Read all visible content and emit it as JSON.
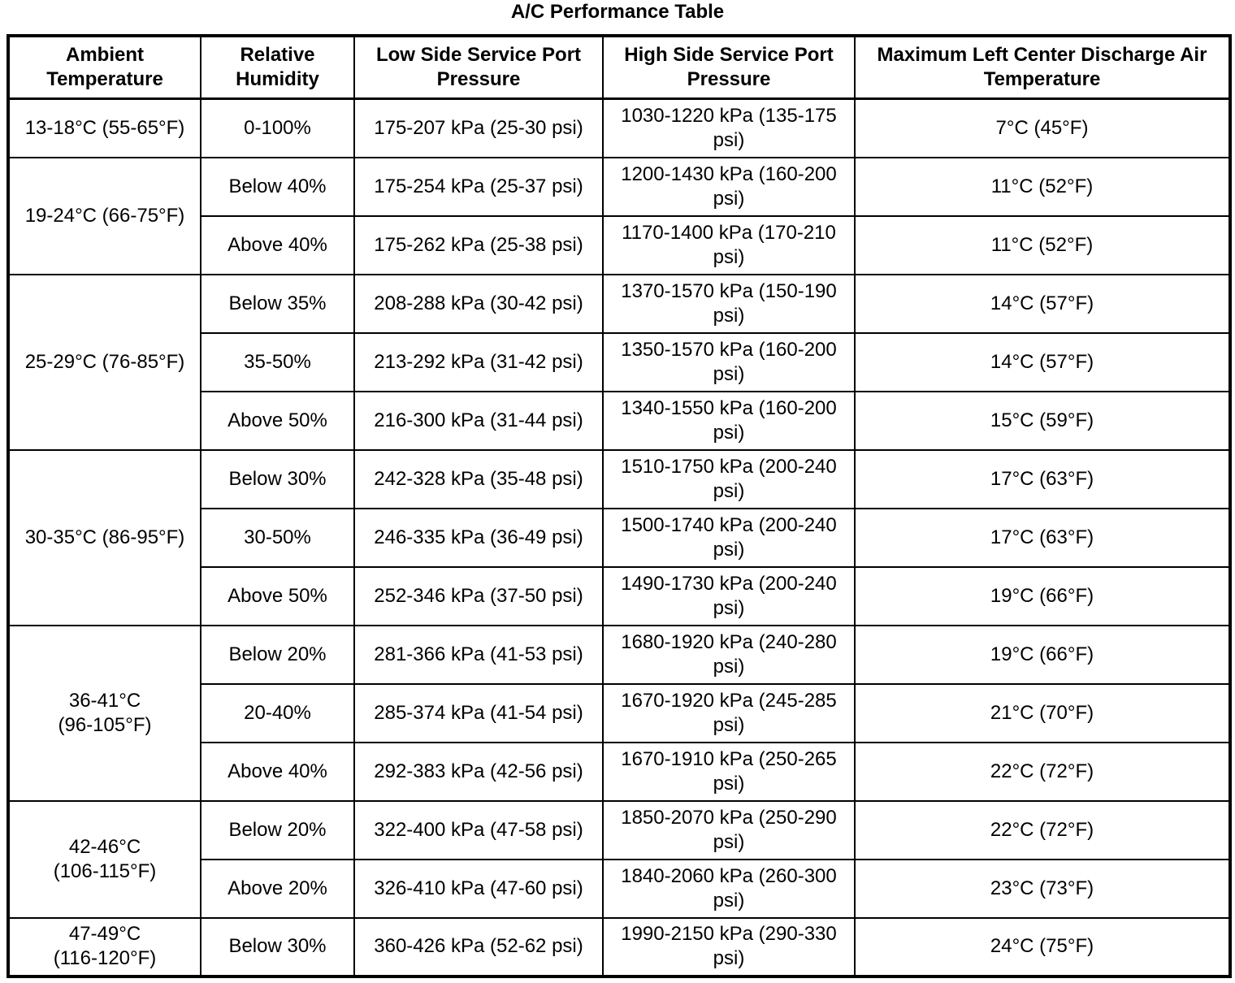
{
  "title": "A/C Performance Table",
  "table": {
    "headers": [
      "Ambient\nTemperature",
      "Relative\nHumidity",
      "Low Side Service Port\nPressure",
      "High Side Service Port\nPressure",
      "Maximum Left Center Discharge Air\nTemperature"
    ],
    "groups": [
      {
        "ambient": "13-18°C (55-65°F)",
        "rows": [
          {
            "humidity": "0-100%",
            "low_side": "175-207 kPa (25-30 psi)",
            "high_side": "1030-1220 kPa (135-175\npsi)",
            "discharge": "7°C (45°F)"
          }
        ]
      },
      {
        "ambient": "19-24°C (66-75°F)",
        "rows": [
          {
            "humidity": "Below 40%",
            "low_side": "175-254 kPa (25-37 psi)",
            "high_side": "1200-1430 kPa (160-200\npsi)",
            "discharge": "11°C (52°F)"
          },
          {
            "humidity": "Above 40%",
            "low_side": "175-262 kPa (25-38 psi)",
            "high_side": "1170-1400 kPa (170-210\npsi)",
            "discharge": "11°C (52°F)"
          }
        ]
      },
      {
        "ambient": "25-29°C (76-85°F)",
        "rows": [
          {
            "humidity": "Below 35%",
            "low_side": "208-288 kPa (30-42 psi)",
            "high_side": "1370-1570 kPa (150-190\npsi)",
            "discharge": "14°C (57°F)"
          },
          {
            "humidity": "35-50%",
            "low_side": "213-292 kPa (31-42 psi)",
            "high_side": "1350-1570 kPa (160-200\npsi)",
            "discharge": "14°C (57°F)"
          },
          {
            "humidity": "Above 50%",
            "low_side": "216-300 kPa (31-44 psi)",
            "high_side": "1340-1550 kPa (160-200\npsi)",
            "discharge": "15°C (59°F)"
          }
        ]
      },
      {
        "ambient": "30-35°C (86-95°F)",
        "rows": [
          {
            "humidity": "Below 30%",
            "low_side": "242-328 kPa (35-48 psi)",
            "high_side": "1510-1750 kPa (200-240\npsi)",
            "discharge": "17°C (63°F)"
          },
          {
            "humidity": "30-50%",
            "low_side": "246-335 kPa (36-49 psi)",
            "high_side": "1500-1740 kPa (200-240\npsi)",
            "discharge": "17°C (63°F)"
          },
          {
            "humidity": "Above 50%",
            "low_side": "252-346 kPa (37-50 psi)",
            "high_side": "1490-1730 kPa (200-240\npsi)",
            "discharge": "19°C (66°F)"
          }
        ]
      },
      {
        "ambient": "36-41°C\n(96-105°F)",
        "rows": [
          {
            "humidity": "Below 20%",
            "low_side": "281-366 kPa (41-53 psi)",
            "high_side": "1680-1920 kPa (240-280\npsi)",
            "discharge": "19°C (66°F)"
          },
          {
            "humidity": "20-40%",
            "low_side": "285-374 kPa (41-54 psi)",
            "high_side": "1670-1920 kPa (245-285\npsi)",
            "discharge": "21°C (70°F)"
          },
          {
            "humidity": "Above 40%",
            "low_side": "292-383 kPa (42-56 psi)",
            "high_side": "1670-1910 kPa (250-265\npsi)",
            "discharge": "22°C (72°F)"
          }
        ]
      },
      {
        "ambient": "42-46°C\n(106-115°F)",
        "rows": [
          {
            "humidity": "Below 20%",
            "low_side": "322-400 kPa (47-58 psi)",
            "high_side": "1850-2070 kPa (250-290\npsi)",
            "discharge": "22°C (72°F)"
          },
          {
            "humidity": "Above 20%",
            "low_side": "326-410 kPa (47-60 psi)",
            "high_side": "1840-2060 kPa (260-300\npsi)",
            "discharge": "23°C (73°F)"
          }
        ]
      },
      {
        "ambient": "47-49°C\n(116-120°F)",
        "rows": [
          {
            "humidity": "Below 30%",
            "low_side": "360-426 kPa (52-62 psi)",
            "high_side": "1990-2150 kPa (290-330\npsi)",
            "discharge": "24°C (75°F)"
          }
        ]
      }
    ]
  }
}
